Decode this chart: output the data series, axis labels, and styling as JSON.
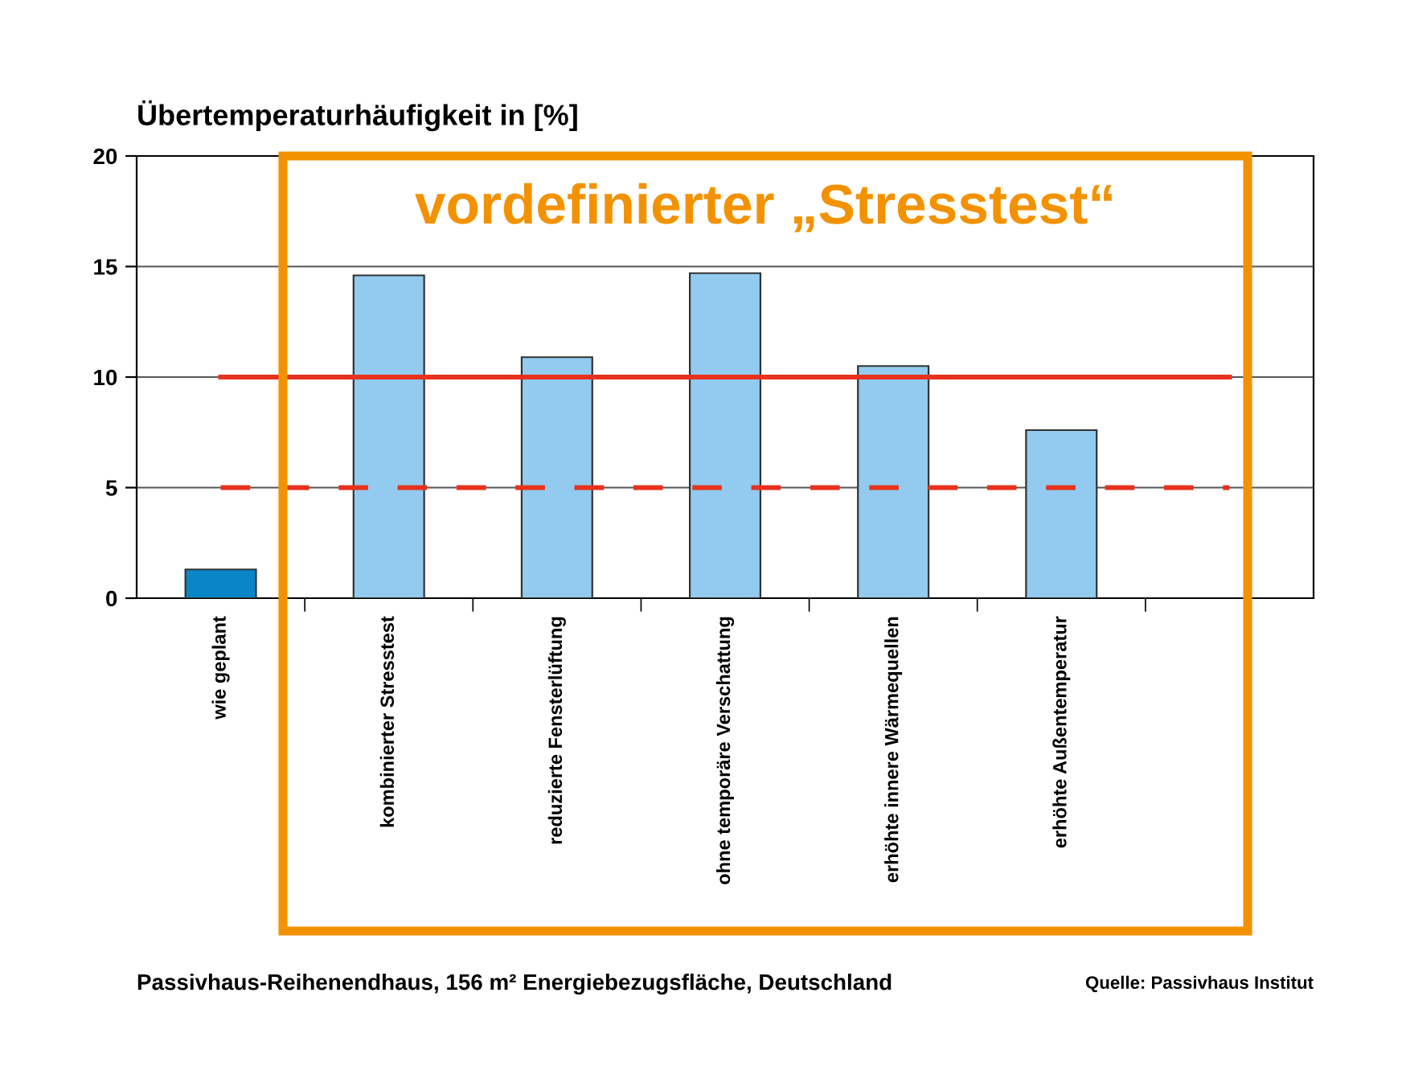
{
  "chart_data": {
    "type": "bar",
    "title": "Übertemperaturhäufigkeit in [%]",
    "categories": [
      "wie geplant",
      "kombinierter Stresstest",
      "reduzierte Fensterlüftung",
      "ohne temporäre Verschattung",
      "erhöhte innere Wärmequellen",
      "erhöhte Außentemperatur",
      null
    ],
    "values": [
      1.3,
      14.6,
      10.9,
      14.7,
      10.5,
      7.6,
      null
    ],
    "colors": [
      "#0a86c8",
      "#92cbef",
      "#92cbef",
      "#92cbef",
      "#92cbef",
      "#92cbef",
      "#92cbef"
    ],
    "ylim": [
      0,
      20
    ],
    "yticks": [
      0,
      5,
      10,
      15,
      20
    ],
    "grid": "y",
    "ref_lines": [
      {
        "axis": "y",
        "value": 10,
        "label": null,
        "color": "#e8321e",
        "line_style": "solid"
      },
      {
        "axis": "y",
        "value": 5,
        "label": null,
        "color": "#e8321e",
        "line_style": "dashed"
      }
    ],
    "annotations": [
      "vordefinierter „Stresstest“",
      "Passivhaus-Reihenendhaus, 156 m² Energiebezugsfläche, Deutschland",
      "Quelle: Passivhaus Institut"
    ]
  }
}
